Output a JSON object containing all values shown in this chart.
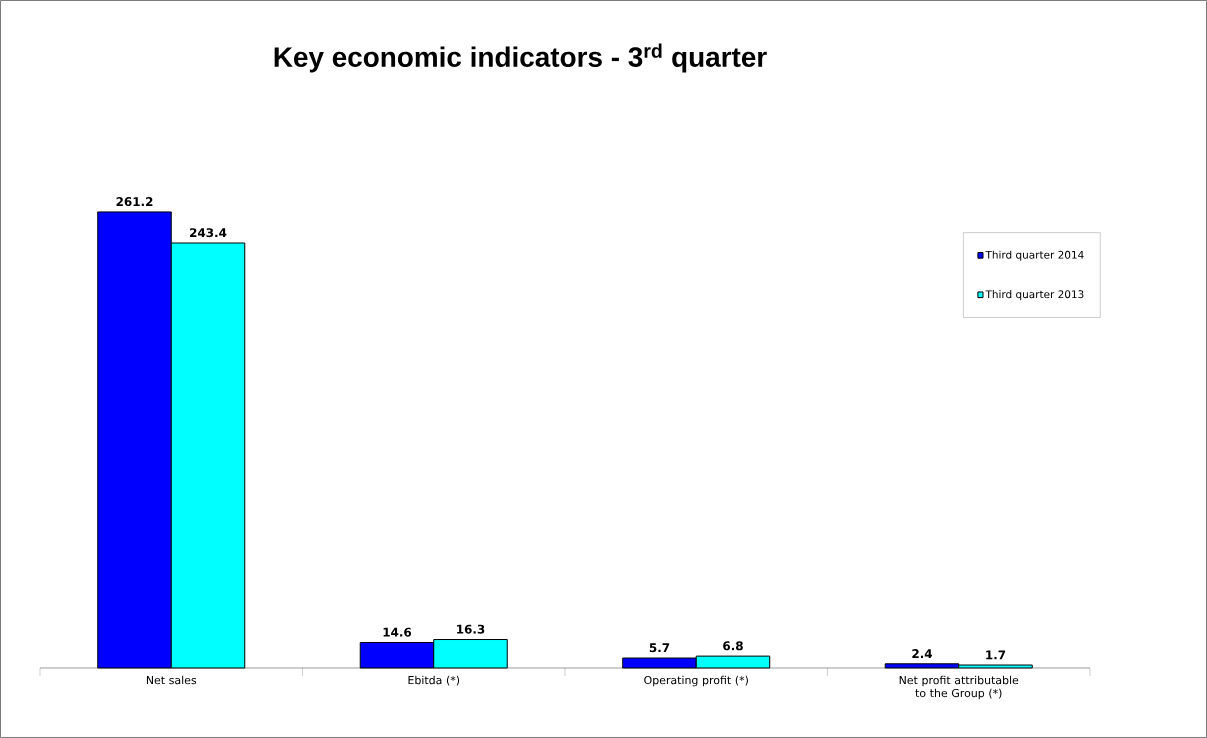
{
  "chart_data": {
    "type": "bar",
    "title": "Key economic indicators - 3$^{rd}$ quarter",
    "categories": [
      "Net sales",
      "Ebitda (*)",
      "Operating profit (*)",
      "Net profit attributable to the Group (*)"
    ],
    "series": [
      {
        "name": "Third quarter 2014",
        "color": "#0000ff",
        "values": [
          261.2,
          14.6,
          5.7,
          2.4
        ]
      },
      {
        "name": "Third quarter 2013",
        "color": "#00ffff",
        "values": [
          243.4,
          16.3,
          6.8,
          1.7
        ]
      }
    ],
    "data_labels": true,
    "legend": "top right"
  }
}
